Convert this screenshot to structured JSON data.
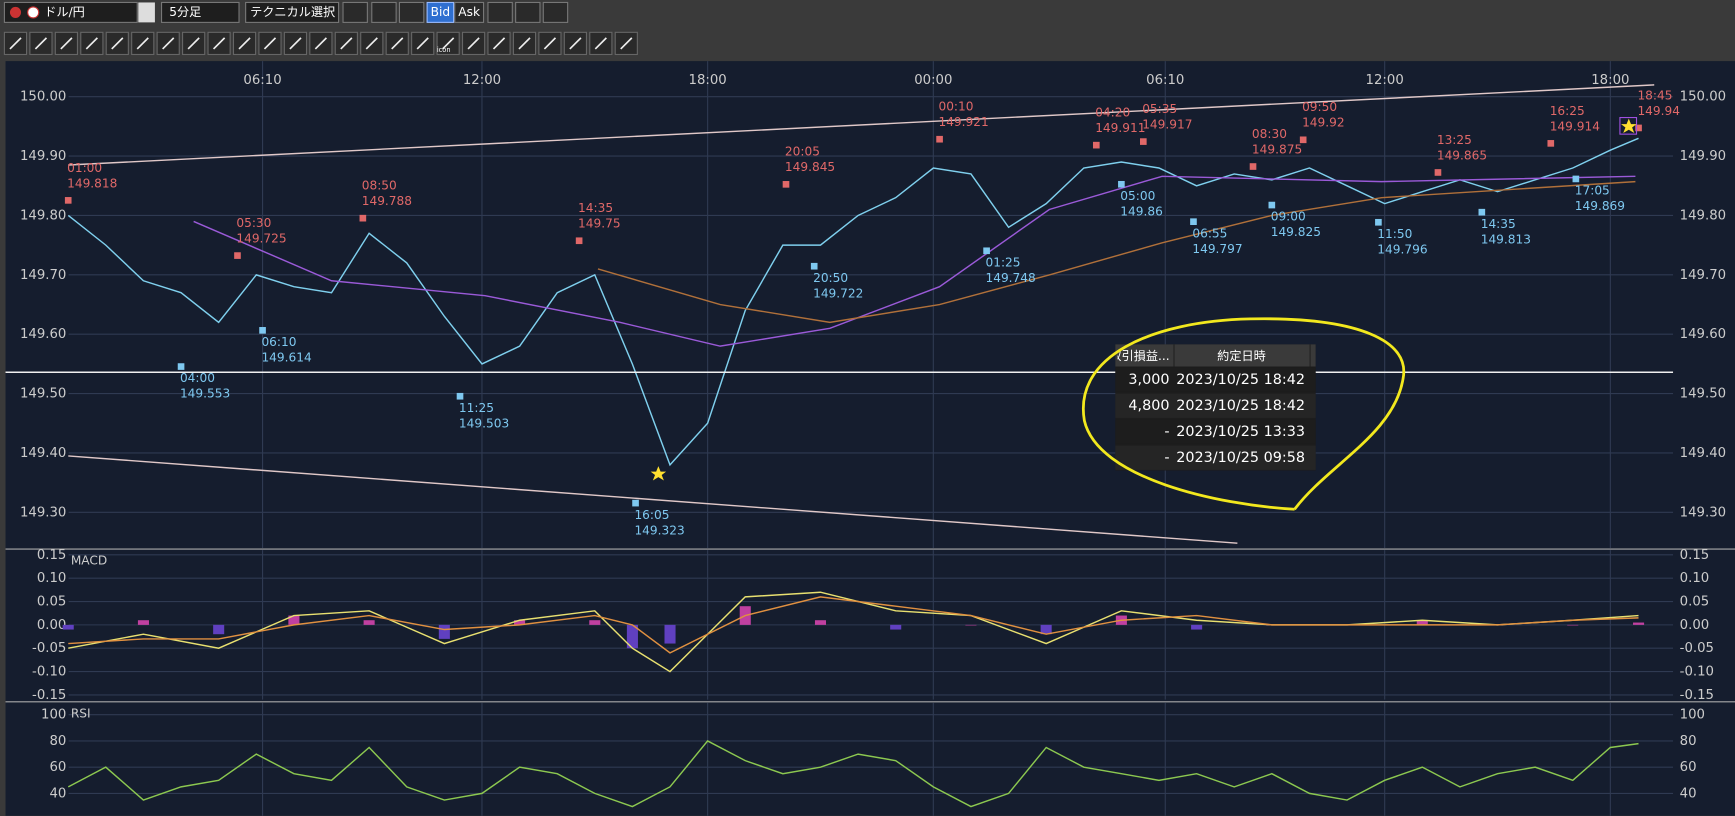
{
  "toolbar": {
    "pair": "ドル/円",
    "timeframe": "5分足",
    "technical": "テクニカル選択",
    "bid": "Bid",
    "ask": "Ask",
    "icon_label": "icon"
  },
  "popup": {
    "headers": [
      "取引損益...",
      "約定日時"
    ],
    "rows": [
      [
        "3,000",
        "2023/10/25 18:42"
      ],
      [
        "4,800",
        "2023/10/25 18:42"
      ],
      [
        "-",
        "2023/10/25 13:33"
      ],
      [
        "-",
        "2023/10/25 09:58"
      ]
    ]
  },
  "chart_data": [
    {
      "type": "line",
      "grid": true,
      "xlim": [
        -20,
        512
      ],
      "ylim": [
        149.24,
        150.06
      ],
      "xticks": [
        {
          "value": 62,
          "label": "06:10"
        },
        {
          "value": 132,
          "label": "12:00"
        },
        {
          "value": 204,
          "label": "18:00"
        },
        {
          "value": 276,
          "label": "00:00"
        },
        {
          "value": 350,
          "label": "06:10"
        },
        {
          "value": 420,
          "label": "12:00"
        },
        {
          "value": 492,
          "label": "18:00"
        }
      ],
      "yticks": [
        {
          "value": 149.3,
          "label": "149.30"
        },
        {
          "value": 149.4,
          "label": "149.40"
        },
        {
          "value": 149.5,
          "label": "149.50"
        },
        {
          "value": 149.6,
          "label": "149.60"
        },
        {
          "value": 149.7,
          "label": "149.70"
        },
        {
          "value": 149.8,
          "label": "149.80"
        },
        {
          "value": 149.9,
          "label": "149.90"
        },
        {
          "value": 150,
          "label": "150.00"
        }
      ],
      "x": [
        0,
        12,
        24,
        36,
        48,
        60,
        72,
        84,
        96,
        108,
        120,
        132,
        144,
        156,
        168,
        180,
        192,
        204,
        216,
        228,
        240,
        252,
        264,
        276,
        288,
        300,
        312,
        324,
        336,
        348,
        360,
        372,
        384,
        396,
        408,
        420,
        432,
        444,
        456,
        468,
        480,
        492,
        501
      ],
      "series": [
        {
          "color": "#7fd0ee",
          "values": [
            149.8,
            149.75,
            149.69,
            149.67,
            149.62,
            149.7,
            149.68,
            149.67,
            149.77,
            149.72,
            149.63,
            149.55,
            149.58,
            149.67,
            149.7,
            149.55,
            149.38,
            149.45,
            149.64,
            149.75,
            149.75,
            149.8,
            149.83,
            149.88,
            149.87,
            149.78,
            149.82,
            149.88,
            149.89,
            149.88,
            149.85,
            149.87,
            149.86,
            149.88,
            149.85,
            149.82,
            149.84,
            149.86,
            149.84,
            149.86,
            149.88,
            149.91,
            149.93
          ]
        },
        {
          "color": "#9a5ad8",
          "x": [
            40,
            84,
            133,
            176,
            208,
            243,
            278,
            313,
            349,
            419,
            500
          ],
          "values": [
            149.79,
            149.69,
            149.665,
            149.62,
            149.58,
            149.61,
            149.68,
            149.81,
            149.866,
            149.857,
            149.866
          ]
        },
        {
          "color": "#b0703a",
          "x": [
            169,
            208,
            243,
            278,
            313,
            349,
            384,
            419,
            500
          ],
          "values": [
            149.71,
            149.65,
            149.62,
            149.65,
            149.7,
            149.754,
            149.8,
            149.83,
            149.857
          ]
        },
        {
          "color": "#e0c8c8",
          "x": [
            0,
            506
          ],
          "values": [
            149.885,
            150.02
          ]
        },
        {
          "color": "#e0c8c8",
          "x": [
            0,
            373
          ],
          "values": [
            149.395,
            149.248
          ]
        },
        {
          "color": "#f0f0f0",
          "x": [
            -20,
            512
          ],
          "values": [
            149.536,
            149.536
          ]
        }
      ],
      "annotations": [
        {
          "kind": "high",
          "time": "01:00",
          "x": 0,
          "value": 149.818
        },
        {
          "kind": "high",
          "time": "05:30",
          "x": 54,
          "value": 149.725
        },
        {
          "kind": "high",
          "time": "08:50",
          "x": 94,
          "value": 149.788
        },
        {
          "kind": "high",
          "time": "14:35",
          "x": 163,
          "value": 149.75
        },
        {
          "kind": "high",
          "time": "20:05",
          "x": 229,
          "value": 149.845
        },
        {
          "kind": "high",
          "time": "00:10",
          "x": 278,
          "value": 149.921
        },
        {
          "kind": "high",
          "time": "04:20",
          "x": 328,
          "value": 149.911
        },
        {
          "kind": "high",
          "time": "05:35",
          "x": 343,
          "value": 149.917
        },
        {
          "kind": "high",
          "time": "08:30",
          "x": 378,
          "value": 149.875
        },
        {
          "kind": "high",
          "time": "09:50",
          "x": 394,
          "value": 149.92
        },
        {
          "kind": "high",
          "time": "13:25",
          "x": 437,
          "value": 149.865
        },
        {
          "kind": "high",
          "time": "16:25",
          "x": 473,
          "value": 149.914
        },
        {
          "kind": "high",
          "time": "18:45",
          "x": 501,
          "value": 149.94
        },
        {
          "kind": "low",
          "time": "04:00",
          "x": 36,
          "value": 149.553
        },
        {
          "kind": "low",
          "time": "06:10",
          "x": 62,
          "value": 149.614
        },
        {
          "kind": "low",
          "time": "11:25",
          "x": 125,
          "value": 149.503
        },
        {
          "kind": "low",
          "time": "16:05",
          "x": 181,
          "value": 149.323
        },
        {
          "kind": "low",
          "time": "20:50",
          "x": 238,
          "value": 149.722
        },
        {
          "kind": "low",
          "time": "01:25",
          "x": 293,
          "value": 149.748
        },
        {
          "kind": "low",
          "time": "05:00",
          "x": 336,
          "value": 149.86
        },
        {
          "kind": "low",
          "time": "06:55",
          "x": 359,
          "value": 149.797
        },
        {
          "kind": "low",
          "time": "09:00",
          "x": 384,
          "value": 149.825
        },
        {
          "kind": "low",
          "time": "11:50",
          "x": 418,
          "value": 149.796
        },
        {
          "kind": "low",
          "time": "14:35",
          "x": 451,
          "value": 149.813
        },
        {
          "kind": "low",
          "time": "17:05",
          "x": 481,
          "value": 149.869
        }
      ]
    },
    {
      "type": "line",
      "title": "MACD",
      "grid": true,
      "ylim": [
        -0.16,
        0.16
      ],
      "yticks": [
        -0.15,
        {
          "value": -0.1,
          "label": "-0.10"
        },
        -0.05,
        {
          "value": 0,
          "label": "0.00"
        },
        0.05,
        {
          "value": 0.1,
          "label": "0.10"
        },
        0.15
      ],
      "x": [
        0,
        24,
        48,
        72,
        96,
        120,
        144,
        168,
        180,
        192,
        216,
        240,
        264,
        288,
        312,
        336,
        360,
        384,
        408,
        432,
        456,
        480,
        501
      ],
      "histogram": {
        "positive_color": "#c040a0",
        "negative_color": "#6040c0",
        "values": [
          -0.01,
          0.01,
          -0.02,
          0.02,
          0.01,
          -0.03,
          0.01,
          0.01,
          -0.05,
          -0.04,
          0.04,
          0.01,
          -0.01,
          0,
          -0.02,
          0.02,
          -0.01,
          0,
          0,
          0.01,
          0,
          0,
          0.005
        ]
      },
      "series": [
        {
          "color": "#e8e070",
          "values": [
            -0.05,
            -0.02,
            -0.05,
            0.02,
            0.03,
            -0.04,
            0.01,
            0.03,
            -0.05,
            -0.1,
            0.06,
            0.07,
            0.03,
            0.02,
            -0.04,
            0.03,
            0.01,
            0,
            0,
            0.01,
            0,
            0.01,
            0.02
          ]
        },
        {
          "color": "#e09040",
          "values": [
            -0.04,
            -0.03,
            -0.03,
            0,
            0.02,
            -0.01,
            0,
            0.02,
            0,
            -0.06,
            0.02,
            0.06,
            0.04,
            0.02,
            -0.02,
            0.01,
            0.02,
            0,
            0,
            0,
            0,
            0.01,
            0.015
          ]
        }
      ]
    },
    {
      "type": "line",
      "title": "RSI",
      "grid": true,
      "ylim": [
        23,
        109
      ],
      "yticks": [
        40,
        60,
        80,
        100
      ],
      "x": [
        0,
        12,
        24,
        36,
        48,
        60,
        72,
        84,
        96,
        108,
        120,
        132,
        144,
        156,
        168,
        180,
        192,
        204,
        216,
        228,
        240,
        252,
        264,
        276,
        288,
        300,
        312,
        324,
        336,
        348,
        360,
        372,
        384,
        396,
        408,
        420,
        432,
        444,
        456,
        468,
        480,
        492,
        501
      ],
      "series": [
        {
          "color": "#8cc850",
          "values": [
            45,
            60,
            35,
            45,
            50,
            70,
            55,
            50,
            75,
            45,
            35,
            40,
            60,
            55,
            40,
            30,
            45,
            80,
            65,
            55,
            60,
            70,
            65,
            45,
            30,
            40,
            75,
            60,
            55,
            50,
            55,
            45,
            55,
            40,
            35,
            50,
            60,
            45,
            55,
            60,
            50,
            75,
            78
          ]
        }
      ]
    }
  ]
}
